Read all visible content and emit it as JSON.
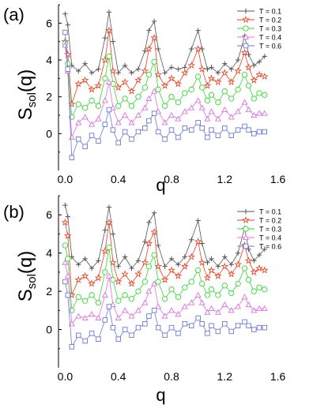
{
  "chart_data": [
    {
      "type": "line",
      "panel_label": "(a)",
      "xlabel": "q",
      "ylabel_main": "S",
      "ylabel_sub": "sol",
      "ylabel_tail": "(q)",
      "xlim": [
        -0.05,
        1.65
      ],
      "ylim": [
        -2.0,
        7.0
      ],
      "xticks": [
        "0.0",
        "0.4",
        "0.8",
        "1.2",
        "1.6"
      ],
      "yticks": [
        "0",
        "2",
        "4",
        "6"
      ],
      "legend_position": "top-right",
      "series": [
        {
          "name": "T = 0.1",
          "color": "#555555",
          "marker": "plus",
          "x": [
            0.0,
            0.02,
            0.05,
            0.1,
            0.15,
            0.2,
            0.25,
            0.3,
            0.33,
            0.36,
            0.4,
            0.45,
            0.5,
            0.55,
            0.6,
            0.63,
            0.67,
            0.7,
            0.75,
            0.8,
            0.85,
            0.9,
            0.95,
            1.0,
            1.03,
            1.07,
            1.1,
            1.15,
            1.2,
            1.25,
            1.3,
            1.35,
            1.38,
            1.42,
            1.46,
            1.5
          ],
          "y": [
            6.5,
            5.9,
            3.7,
            3.4,
            3.8,
            3.3,
            3.5,
            5.2,
            6.6,
            5.0,
            3.3,
            3.7,
            3.3,
            3.5,
            4.5,
            5.6,
            6.1,
            4.6,
            3.3,
            3.6,
            3.5,
            3.6,
            4.6,
            5.6,
            4.6,
            3.5,
            3.6,
            3.3,
            3.8,
            3.5,
            4.0,
            5.3,
            4.3,
            3.7,
            3.9,
            4.2
          ]
        },
        {
          "name": "T = 0.2",
          "color": "#e8421e",
          "marker": "star",
          "x": [
            0.0,
            0.02,
            0.05,
            0.1,
            0.15,
            0.2,
            0.25,
            0.3,
            0.33,
            0.36,
            0.4,
            0.45,
            0.5,
            0.55,
            0.6,
            0.63,
            0.67,
            0.7,
            0.75,
            0.8,
            0.85,
            0.9,
            0.95,
            1.0,
            1.03,
            1.07,
            1.1,
            1.15,
            1.2,
            1.25,
            1.3,
            1.35,
            1.38,
            1.42,
            1.46,
            1.5
          ],
          "y": [
            5.0,
            4.3,
            1.6,
            2.7,
            2.9,
            2.4,
            2.6,
            4.0,
            5.6,
            3.4,
            2.5,
            2.8,
            2.3,
            2.9,
            3.4,
            4.6,
            5.2,
            3.2,
            2.6,
            3.0,
            2.7,
            3.3,
            3.7,
            4.6,
            3.5,
            2.6,
            3.0,
            2.8,
            3.3,
            2.8,
            3.4,
            4.4,
            3.6,
            2.9,
            3.2,
            3.1
          ]
        },
        {
          "name": "T = 0.3",
          "color": "#33d933",
          "marker": "circle",
          "x": [
            0.0,
            0.02,
            0.05,
            0.1,
            0.15,
            0.2,
            0.25,
            0.3,
            0.33,
            0.36,
            0.4,
            0.45,
            0.5,
            0.55,
            0.6,
            0.63,
            0.67,
            0.7,
            0.75,
            0.8,
            0.85,
            0.9,
            0.95,
            1.0,
            1.03,
            1.07,
            1.1,
            1.15,
            1.2,
            1.25,
            1.3,
            1.35,
            1.38,
            1.42,
            1.46,
            1.5
          ],
          "y": [
            4.9,
            3.8,
            0.9,
            1.6,
            1.4,
            1.8,
            1.5,
            3.0,
            4.2,
            2.7,
            1.5,
            1.9,
            1.5,
            2.0,
            2.5,
            3.2,
            3.9,
            2.4,
            1.5,
            2.0,
            1.7,
            2.2,
            2.4,
            3.1,
            2.5,
            1.8,
            2.1,
            1.7,
            2.3,
            1.9,
            2.4,
            3.2,
            2.6,
            1.9,
            2.2,
            2.1
          ]
        },
        {
          "name": "T = 0.4",
          "color": "#e070e0",
          "marker": "triangle",
          "x": [
            0.0,
            0.02,
            0.05,
            0.1,
            0.15,
            0.2,
            0.25,
            0.3,
            0.33,
            0.36,
            0.4,
            0.45,
            0.5,
            0.55,
            0.6,
            0.63,
            0.67,
            0.7,
            0.75,
            0.8,
            0.85,
            0.9,
            0.95,
            1.0,
            1.03,
            1.07,
            1.1,
            1.15,
            1.2,
            1.25,
            1.3,
            1.35,
            1.38,
            1.42,
            1.46,
            1.5
          ],
          "y": [
            4.8,
            3.4,
            -0.2,
            0.6,
            0.9,
            0.5,
            0.8,
            1.8,
            2.8,
            1.4,
            0.6,
            1.0,
            0.6,
            1.0,
            1.4,
            1.9,
            2.3,
            1.2,
            0.6,
            1.0,
            0.8,
            1.2,
            1.4,
            1.8,
            1.4,
            0.8,
            1.2,
            0.8,
            1.3,
            0.9,
            1.2,
            1.7,
            1.3,
            1.0,
            1.1,
            1.1
          ]
        },
        {
          "name": "T = 0.6",
          "color": "#6a78d8",
          "marker": "square",
          "x": [
            0.0,
            0.02,
            0.05,
            0.1,
            0.15,
            0.2,
            0.25,
            0.3,
            0.33,
            0.36,
            0.4,
            0.45,
            0.5,
            0.55,
            0.6,
            0.63,
            0.67,
            0.7,
            0.75,
            0.8,
            0.85,
            0.9,
            0.95,
            1.0,
            1.03,
            1.07,
            1.1,
            1.15,
            1.2,
            1.25,
            1.3,
            1.35,
            1.38,
            1.42,
            1.46,
            1.5
          ],
          "y": [
            5.5,
            3.5,
            -1.3,
            -0.3,
            -0.7,
            -0.1,
            -0.4,
            0.5,
            1.3,
            0.2,
            -0.5,
            0.1,
            -0.3,
            0.1,
            0.3,
            0.7,
            1.1,
            0.1,
            -0.3,
            0.2,
            -0.2,
            0.3,
            0.2,
            0.6,
            0.3,
            -0.2,
            0.2,
            -0.1,
            0.3,
            -0.1,
            0.2,
            0.4,
            0.2,
            0.0,
            0.1,
            0.1
          ]
        }
      ]
    },
    {
      "type": "line",
      "panel_label": "(b)",
      "xlabel": "q",
      "ylabel_main": "S",
      "ylabel_sub": "sol",
      "ylabel_tail": "(q)",
      "xlim": [
        -0.05,
        1.65
      ],
      "ylim": [
        -2.0,
        7.0
      ],
      "xticks": [
        "0.0",
        "0.4",
        "0.8",
        "1.2",
        "1.6"
      ],
      "yticks": [
        "0",
        "2",
        "4",
        "6"
      ],
      "legend_position": "top-right",
      "series": [
        {
          "name": "T = 0.1",
          "color": "#555555",
          "marker": "plus",
          "x": [
            0.0,
            0.02,
            0.05,
            0.1,
            0.15,
            0.2,
            0.25,
            0.3,
            0.33,
            0.36,
            0.4,
            0.45,
            0.5,
            0.55,
            0.6,
            0.63,
            0.67,
            0.7,
            0.75,
            0.8,
            0.85,
            0.9,
            0.95,
            1.0,
            1.03,
            1.07,
            1.1,
            1.15,
            1.2,
            1.25,
            1.3,
            1.35,
            1.38,
            1.42,
            1.46,
            1.5
          ],
          "y": [
            6.5,
            5.9,
            3.8,
            3.4,
            3.7,
            3.2,
            3.6,
            5.2,
            6.4,
            5.0,
            3.3,
            3.8,
            3.2,
            3.6,
            4.6,
            5.6,
            6.1,
            4.4,
            3.3,
            3.7,
            3.4,
            3.8,
            4.7,
            5.7,
            4.5,
            3.5,
            3.7,
            3.3,
            3.8,
            3.4,
            4.0,
            5.3,
            4.2,
            3.6,
            3.9,
            4.2
          ]
        },
        {
          "name": "T = 0.2",
          "color": "#e8421e",
          "marker": "star",
          "x": [
            0.0,
            0.02,
            0.05,
            0.1,
            0.15,
            0.2,
            0.25,
            0.3,
            0.33,
            0.36,
            0.4,
            0.45,
            0.5,
            0.55,
            0.6,
            0.63,
            0.67,
            0.7,
            0.75,
            0.8,
            0.85,
            0.9,
            0.95,
            1.0,
            1.03,
            1.07,
            1.1,
            1.15,
            1.2,
            1.25,
            1.3,
            1.35,
            1.38,
            1.42,
            1.46,
            1.5
          ],
          "y": [
            5.6,
            4.9,
            1.8,
            2.6,
            2.8,
            2.4,
            2.7,
            4.1,
            5.6,
            3.5,
            2.5,
            2.9,
            2.4,
            2.9,
            3.5,
            4.5,
            5.1,
            3.3,
            2.6,
            3.1,
            2.8,
            3.3,
            3.8,
            4.6,
            3.5,
            2.7,
            3.1,
            2.8,
            3.3,
            2.9,
            3.4,
            4.4,
            3.6,
            3.0,
            3.2,
            3.1
          ]
        },
        {
          "name": "T = 0.3",
          "color": "#33d933",
          "marker": "circle",
          "x": [
            0.0,
            0.02,
            0.05,
            0.1,
            0.15,
            0.2,
            0.25,
            0.3,
            0.33,
            0.36,
            0.4,
            0.45,
            0.5,
            0.55,
            0.6,
            0.63,
            0.67,
            0.7,
            0.75,
            0.8,
            0.85,
            0.9,
            0.95,
            1.0,
            1.03,
            1.07,
            1.1,
            1.15,
            1.2,
            1.25,
            1.3,
            1.35,
            1.38,
            1.42,
            1.46,
            1.5
          ],
          "y": [
            4.4,
            3.7,
            1.0,
            1.7,
            1.5,
            1.8,
            1.4,
            3.0,
            4.3,
            2.6,
            1.5,
            1.8,
            1.6,
            2.0,
            2.5,
            3.3,
            3.9,
            2.5,
            1.6,
            2.1,
            1.7,
            2.2,
            2.5,
            3.1,
            2.4,
            1.8,
            2.1,
            1.8,
            2.3,
            1.9,
            2.4,
            3.2,
            2.6,
            2.0,
            2.2,
            2.1
          ]
        },
        {
          "name": "T = 0.4",
          "color": "#e070e0",
          "marker": "triangle",
          "x": [
            0.0,
            0.02,
            0.05,
            0.1,
            0.15,
            0.2,
            0.25,
            0.3,
            0.33,
            0.36,
            0.4,
            0.45,
            0.5,
            0.55,
            0.6,
            0.63,
            0.67,
            0.7,
            0.75,
            0.8,
            0.85,
            0.9,
            0.95,
            1.0,
            1.03,
            1.07,
            1.1,
            1.15,
            1.2,
            1.25,
            1.3,
            1.35,
            1.38,
            1.42,
            1.46,
            1.5
          ],
          "y": [
            3.5,
            2.8,
            0.3,
            0.7,
            0.6,
            0.8,
            0.6,
            1.8,
            2.8,
            1.3,
            0.6,
            1.0,
            0.7,
            1.0,
            1.4,
            2.0,
            2.4,
            1.2,
            0.7,
            1.0,
            0.8,
            1.2,
            1.4,
            1.8,
            1.4,
            0.9,
            1.1,
            0.9,
            1.3,
            1.0,
            1.2,
            1.7,
            1.3,
            1.0,
            1.1,
            1.1
          ]
        },
        {
          "name": "T = 0.6",
          "color": "#6a78d8",
          "marker": "square",
          "x": [
            0.0,
            0.02,
            0.05,
            0.1,
            0.15,
            0.2,
            0.25,
            0.3,
            0.33,
            0.36,
            0.4,
            0.45,
            0.5,
            0.55,
            0.6,
            0.63,
            0.67,
            0.7,
            0.75,
            0.8,
            0.85,
            0.9,
            0.95,
            1.0,
            1.03,
            1.07,
            1.1,
            1.15,
            1.2,
            1.25,
            1.3,
            1.35,
            1.38,
            1.42,
            1.46,
            1.5
          ],
          "y": [
            2.5,
            1.8,
            -0.9,
            -0.3,
            -0.6,
            -0.2,
            -0.5,
            0.5,
            1.2,
            0.1,
            -0.5,
            0.0,
            -0.3,
            0.1,
            0.3,
            0.7,
            1.0,
            0.1,
            -0.3,
            0.1,
            -0.2,
            0.3,
            0.2,
            0.6,
            0.3,
            -0.2,
            0.2,
            -0.1,
            0.3,
            -0.1,
            0.2,
            0.4,
            0.2,
            0.0,
            0.1,
            0.1
          ]
        }
      ]
    }
  ]
}
